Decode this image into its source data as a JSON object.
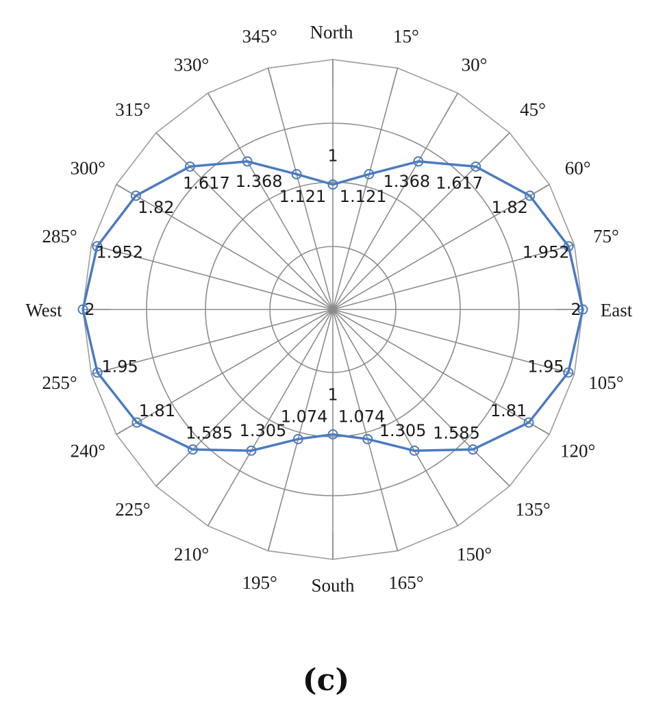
{
  "chart_data": {
    "type": "polar-line",
    "subplot_label": "(c)",
    "compass": {
      "north": "North",
      "east": "East",
      "south": "South",
      "west": "West"
    },
    "angles_deg": [
      0,
      15,
      30,
      45,
      60,
      75,
      90,
      105,
      120,
      135,
      150,
      165,
      180,
      195,
      210,
      225,
      240,
      255,
      270,
      285,
      300,
      315,
      330,
      345
    ],
    "angle_tick_labels": [
      {
        "deg": 15,
        "text": "15°"
      },
      {
        "deg": 30,
        "text": "30°"
      },
      {
        "deg": 45,
        "text": "45°"
      },
      {
        "deg": 60,
        "text": "60°"
      },
      {
        "deg": 75,
        "text": "75°"
      },
      {
        "deg": 105,
        "text": "105°"
      },
      {
        "deg": 120,
        "text": "120°"
      },
      {
        "deg": 135,
        "text": "135°"
      },
      {
        "deg": 150,
        "text": "150°"
      },
      {
        "deg": 165,
        "text": "165°"
      },
      {
        "deg": 195,
        "text": "195°"
      },
      {
        "deg": 210,
        "text": "210°"
      },
      {
        "deg": 225,
        "text": "225°"
      },
      {
        "deg": 240,
        "text": "240°"
      },
      {
        "deg": 255,
        "text": "255°"
      },
      {
        "deg": 285,
        "text": "285°"
      },
      {
        "deg": 300,
        "text": "300°"
      },
      {
        "deg": 315,
        "text": "315°"
      },
      {
        "deg": 330,
        "text": "330°"
      },
      {
        "deg": 345,
        "text": "345°"
      }
    ],
    "series": [
      {
        "color": "#4a7bc0",
        "points": [
          {
            "deg": 0,
            "value": 1,
            "label": "1"
          },
          {
            "deg": 15,
            "value": 1.121,
            "label": "1.121"
          },
          {
            "deg": 30,
            "value": 1.368,
            "label": "1.368"
          },
          {
            "deg": 45,
            "value": 1.617,
            "label": "1.617"
          },
          {
            "deg": 60,
            "value": 1.82,
            "label": "1.82"
          },
          {
            "deg": 75,
            "value": 1.952,
            "label": "1.952"
          },
          {
            "deg": 90,
            "value": 2,
            "label": "2"
          },
          {
            "deg": 105,
            "value": 1.95,
            "label": "1.95"
          },
          {
            "deg": 120,
            "value": 1.81,
            "label": "1.81"
          },
          {
            "deg": 135,
            "value": 1.585,
            "label": "1.585"
          },
          {
            "deg": 150,
            "value": 1.305,
            "label": "1.305"
          },
          {
            "deg": 165,
            "value": 1.074,
            "label": "1.074"
          },
          {
            "deg": 180,
            "value": 1,
            "label": "1"
          },
          {
            "deg": 195,
            "value": 1.074,
            "label": "1.074"
          },
          {
            "deg": 210,
            "value": 1.305,
            "label": "1.305"
          },
          {
            "deg": 225,
            "value": 1.585,
            "label": "1.585"
          },
          {
            "deg": 240,
            "value": 1.81,
            "label": "1.81"
          },
          {
            "deg": 255,
            "value": 1.95,
            "label": "1.95"
          },
          {
            "deg": 270,
            "value": 2,
            "label": "2"
          },
          {
            "deg": 285,
            "value": 1.952,
            "label": "1.952"
          },
          {
            "deg": 300,
            "value": 1.82,
            "label": "1.82"
          },
          {
            "deg": 315,
            "value": 1.617,
            "label": "1.617"
          },
          {
            "deg": 330,
            "value": 1.368,
            "label": "1.368"
          },
          {
            "deg": 345,
            "value": 1.121,
            "label": "1.121"
          }
        ]
      }
    ]
  }
}
